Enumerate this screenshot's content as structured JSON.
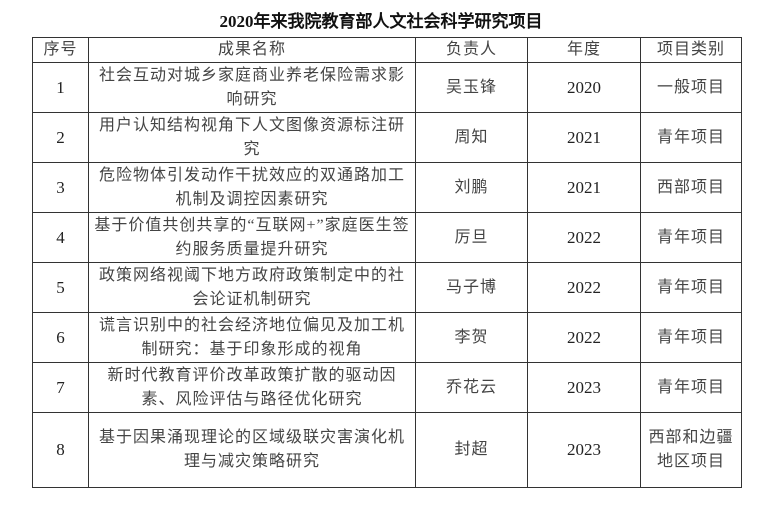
{
  "title": "2020年来我院教育部人文社会科学研究项目",
  "headers": [
    "序号",
    "成果名称",
    "负责人",
    "年度",
    "项目类别"
  ],
  "rows": [
    {
      "no": "1",
      "name": "社会互动对城乡家庭商业养老保险需求影响研究",
      "leader": "吴玉锋",
      "year": "2020",
      "category": "一般项目"
    },
    {
      "no": "2",
      "name": "用户认知结构视角下人文图像资源标注研究",
      "leader": "周知",
      "year": "2021",
      "category": "青年项目"
    },
    {
      "no": "3",
      "name": "危险物体引发动作干扰效应的双通路加工机制及调控因素研究",
      "leader": "刘鹏",
      "year": "2021",
      "category": "西部项目"
    },
    {
      "no": "4",
      "name": "基于价值共创共享的“互联网+”家庭医生签约服务质量提升研究",
      "leader": "厉旦",
      "year": "2022",
      "category": "青年项目"
    },
    {
      "no": "5",
      "name": "政策网络视阈下地方政府政策制定中的社会论证机制研究",
      "leader": "马子博",
      "year": "2022",
      "category": "青年项目"
    },
    {
      "no": "6",
      "name": "谎言识别中的社会经济地位偏见及加工机制研究：基于印象形成的视角",
      "leader": "李贺",
      "year": "2022",
      "category": "青年项目"
    },
    {
      "no": "7",
      "name": "新时代教育评价改革政策扩散的驱动因素、风险评估与路径优化研究",
      "leader": "乔花云",
      "year": "2023",
      "category": "青年项目"
    },
    {
      "no": "8",
      "name": "基于因果涌现理论的区域级联灾害演化机理与减灾策略研究",
      "leader": "封超",
      "year": "2023",
      "category": "西部和边疆地区项目"
    }
  ]
}
